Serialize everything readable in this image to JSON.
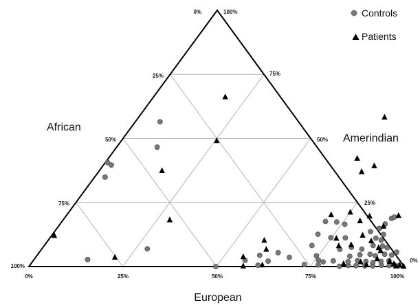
{
  "chart_data": {
    "type": "scatter",
    "subtype": "ternary",
    "title": "",
    "axes": {
      "african": {
        "label": "African",
        "ticks": [
          "0%",
          "25%",
          "50%",
          "75%",
          "100%"
        ]
      },
      "amerindian": {
        "label": "Amerindian",
        "ticks": [
          "100%",
          "75%",
          "50%",
          "25%",
          "0%"
        ]
      },
      "european": {
        "label": "European",
        "ticks": [
          "0%",
          "25%",
          "50%",
          "75%",
          "100%"
        ]
      }
    },
    "grid": true,
    "grid_step_percent": 25,
    "legend": {
      "placement": "top-right"
    },
    "series": [
      {
        "name": "Controls",
        "marker": "circle",
        "color": "#777777",
        "points": [
          {
            "european": 6.6,
            "amerindian": 56.5
          },
          {
            "european": 0.6,
            "amerindian": 40.6
          },
          {
            "european": 2.1,
            "amerindian": 39.6
          },
          {
            "european": 10.8,
            "amerindian": 46.6
          },
          {
            "european": 2.8,
            "amerindian": 34.9
          },
          {
            "european": 14.3,
            "amerindian": 2.7
          },
          {
            "european": 28.1,
            "amerindian": 6.9
          },
          {
            "european": 49.8,
            "amerindian": 0.0
          },
          {
            "european": 56.4,
            "amerindian": 2.4
          },
          {
            "european": 60.8,
            "amerindian": 0.5
          },
          {
            "european": 62.7,
            "amerindian": 2.1
          },
          {
            "european": 59.3,
            "amerindian": 4.4
          },
          {
            "european": 63.7,
            "amerindian": 5.4
          },
          {
            "european": 67.6,
            "amerindian": 3.6
          },
          {
            "european": 73.0,
            "amerindian": 0.8
          },
          {
            "european": 74.5,
            "amerindian": 4.2
          },
          {
            "european": 75.9,
            "amerindian": 2.5
          },
          {
            "european": 76.8,
            "amerindian": 0.6
          },
          {
            "european": 77.5,
            "amerindian": 1.8
          },
          {
            "european": 71.3,
            "amerindian": 8.2
          },
          {
            "european": 70.7,
            "amerindian": 12.6
          },
          {
            "european": 74.8,
            "amerindian": 11.3
          },
          {
            "european": 70.2,
            "amerindian": 17.6
          },
          {
            "european": 73.3,
            "amerindian": 17.4
          },
          {
            "european": 75.9,
            "amerindian": 16.5
          },
          {
            "european": 79.5,
            "amerindian": 6.7
          },
          {
            "european": 78.7,
            "amerindian": 11.2
          },
          {
            "european": 80.0,
            "amerindian": 2.2
          },
          {
            "european": 82.7,
            "amerindian": 0.1
          },
          {
            "european": 84.9,
            "amerindian": 0.4
          },
          {
            "european": 87.0,
            "amerindian": 0.3
          },
          {
            "european": 89.4,
            "amerindian": 0.2
          },
          {
            "european": 91.5,
            "amerindian": 0.2
          },
          {
            "european": 93.7,
            "amerindian": 0.5
          },
          {
            "european": 95.8,
            "amerindian": 0.4
          },
          {
            "european": 96.9,
            "amerindian": 0.7
          },
          {
            "european": 98.4,
            "amerindian": 0.3
          },
          {
            "european": 84.1,
            "amerindian": 1.9
          },
          {
            "european": 86.4,
            "amerindian": 2.3
          },
          {
            "european": 88.8,
            "amerindian": 2.0
          },
          {
            "european": 90.9,
            "amerindian": 1.5
          },
          {
            "european": 92.8,
            "amerindian": 2.0
          },
          {
            "european": 94.8,
            "amerindian": 2.3
          },
          {
            "european": 83.5,
            "amerindian": 4.0
          },
          {
            "european": 85.9,
            "amerindian": 4.6
          },
          {
            "european": 88.5,
            "amerindian": 4.8
          },
          {
            "european": 90.2,
            "amerindian": 4.2
          },
          {
            "european": 92.4,
            "amerindian": 4.8
          },
          {
            "european": 94.4,
            "amerindian": 4.5
          },
          {
            "european": 95.2,
            "amerindian": 5.6
          },
          {
            "european": 82.2,
            "amerindian": 7.5
          },
          {
            "european": 85.3,
            "amerindian": 6.8
          },
          {
            "european": 87.6,
            "amerindian": 8.2
          },
          {
            "european": 90.2,
            "amerindian": 8.0
          },
          {
            "european": 91.8,
            "amerindian": 7.3
          },
          {
            "european": 86.9,
            "amerindian": 11.1
          },
          {
            "european": 88.7,
            "amerindian": 10.3
          },
          {
            "european": 88.2,
            "amerindian": 12.5
          },
          {
            "european": 84.2,
            "amerindian": 13.6
          },
          {
            "european": 85.9,
            "amerindian": 14.9
          },
          {
            "european": 86.6,
            "amerindian": 16.6
          },
          {
            "european": 87.2,
            "amerindian": 18.8
          },
          {
            "european": 87.7,
            "amerindian": 19.3
          }
        ]
      },
      {
        "name": "Patients",
        "marker": "triangle",
        "color": "#000000",
        "points": [
          {
            "european": 0.6,
            "amerindian": 12.3
          },
          {
            "european": 16.6,
            "amerindian": 37.6
          },
          {
            "european": 19.0,
            "amerindian": 66.4
          },
          {
            "european": 25.3,
            "amerindian": 49.3
          },
          {
            "european": 28.3,
            "amerindian": 18.4
          },
          {
            "european": 21.0,
            "amerindian": 3.8
          },
          {
            "european": 55.1,
            "amerindian": 4.0
          },
          {
            "european": 56.9,
            "amerindian": 0.4
          },
          {
            "european": 61.8,
            "amerindian": 0.8
          },
          {
            "european": 57.5,
            "amerindian": 10.4
          },
          {
            "european": 59.8,
            "amerindian": 6.9
          },
          {
            "european": 70.3,
            "amerindian": 20.4
          },
          {
            "european": 74.9,
            "amerindian": 21.4
          },
          {
            "european": 79.2,
            "amerindian": 18.0
          },
          {
            "european": 80.8,
            "amerindian": 19.9
          },
          {
            "european": 76.3,
            "amerindian": 11.2
          },
          {
            "european": 78.4,
            "amerindian": 8.3
          },
          {
            "european": 81.5,
            "amerindian": 8.7
          },
          {
            "european": 82.7,
            "amerindian": 12.4
          },
          {
            "european": 86.1,
            "amerindian": 10.2
          },
          {
            "european": 86.5,
            "amerindian": 15.9
          },
          {
            "european": 88.4,
            "amerindian": 20.1
          },
          {
            "european": 66.2,
            "amerindian": 42.4
          },
          {
            "european": 72.2,
            "amerindian": 39.5
          },
          {
            "european": 70.0,
            "amerindian": 37.2
          },
          {
            "european": 65.4,
            "amerindian": 58.5
          },
          {
            "european": 83.2,
            "amerindian": 1.3
          },
          {
            "european": 87.4,
            "amerindian": 2.0
          },
          {
            "european": 89.5,
            "amerindian": 0.9
          },
          {
            "european": 91.2,
            "amerindian": 3.2
          },
          {
            "european": 90.5,
            "amerindian": 6.4
          },
          {
            "european": 89.4,
            "amerindian": 7.5
          },
          {
            "european": 95.0,
            "amerindian": 2.2
          },
          {
            "european": 96.6,
            "amerindian": 1.3
          },
          {
            "european": 97.6,
            "amerindian": 0.4
          },
          {
            "european": 98.4,
            "amerindian": 0.8
          },
          {
            "european": 99.7,
            "amerindian": 0.3
          }
        ]
      }
    ]
  }
}
